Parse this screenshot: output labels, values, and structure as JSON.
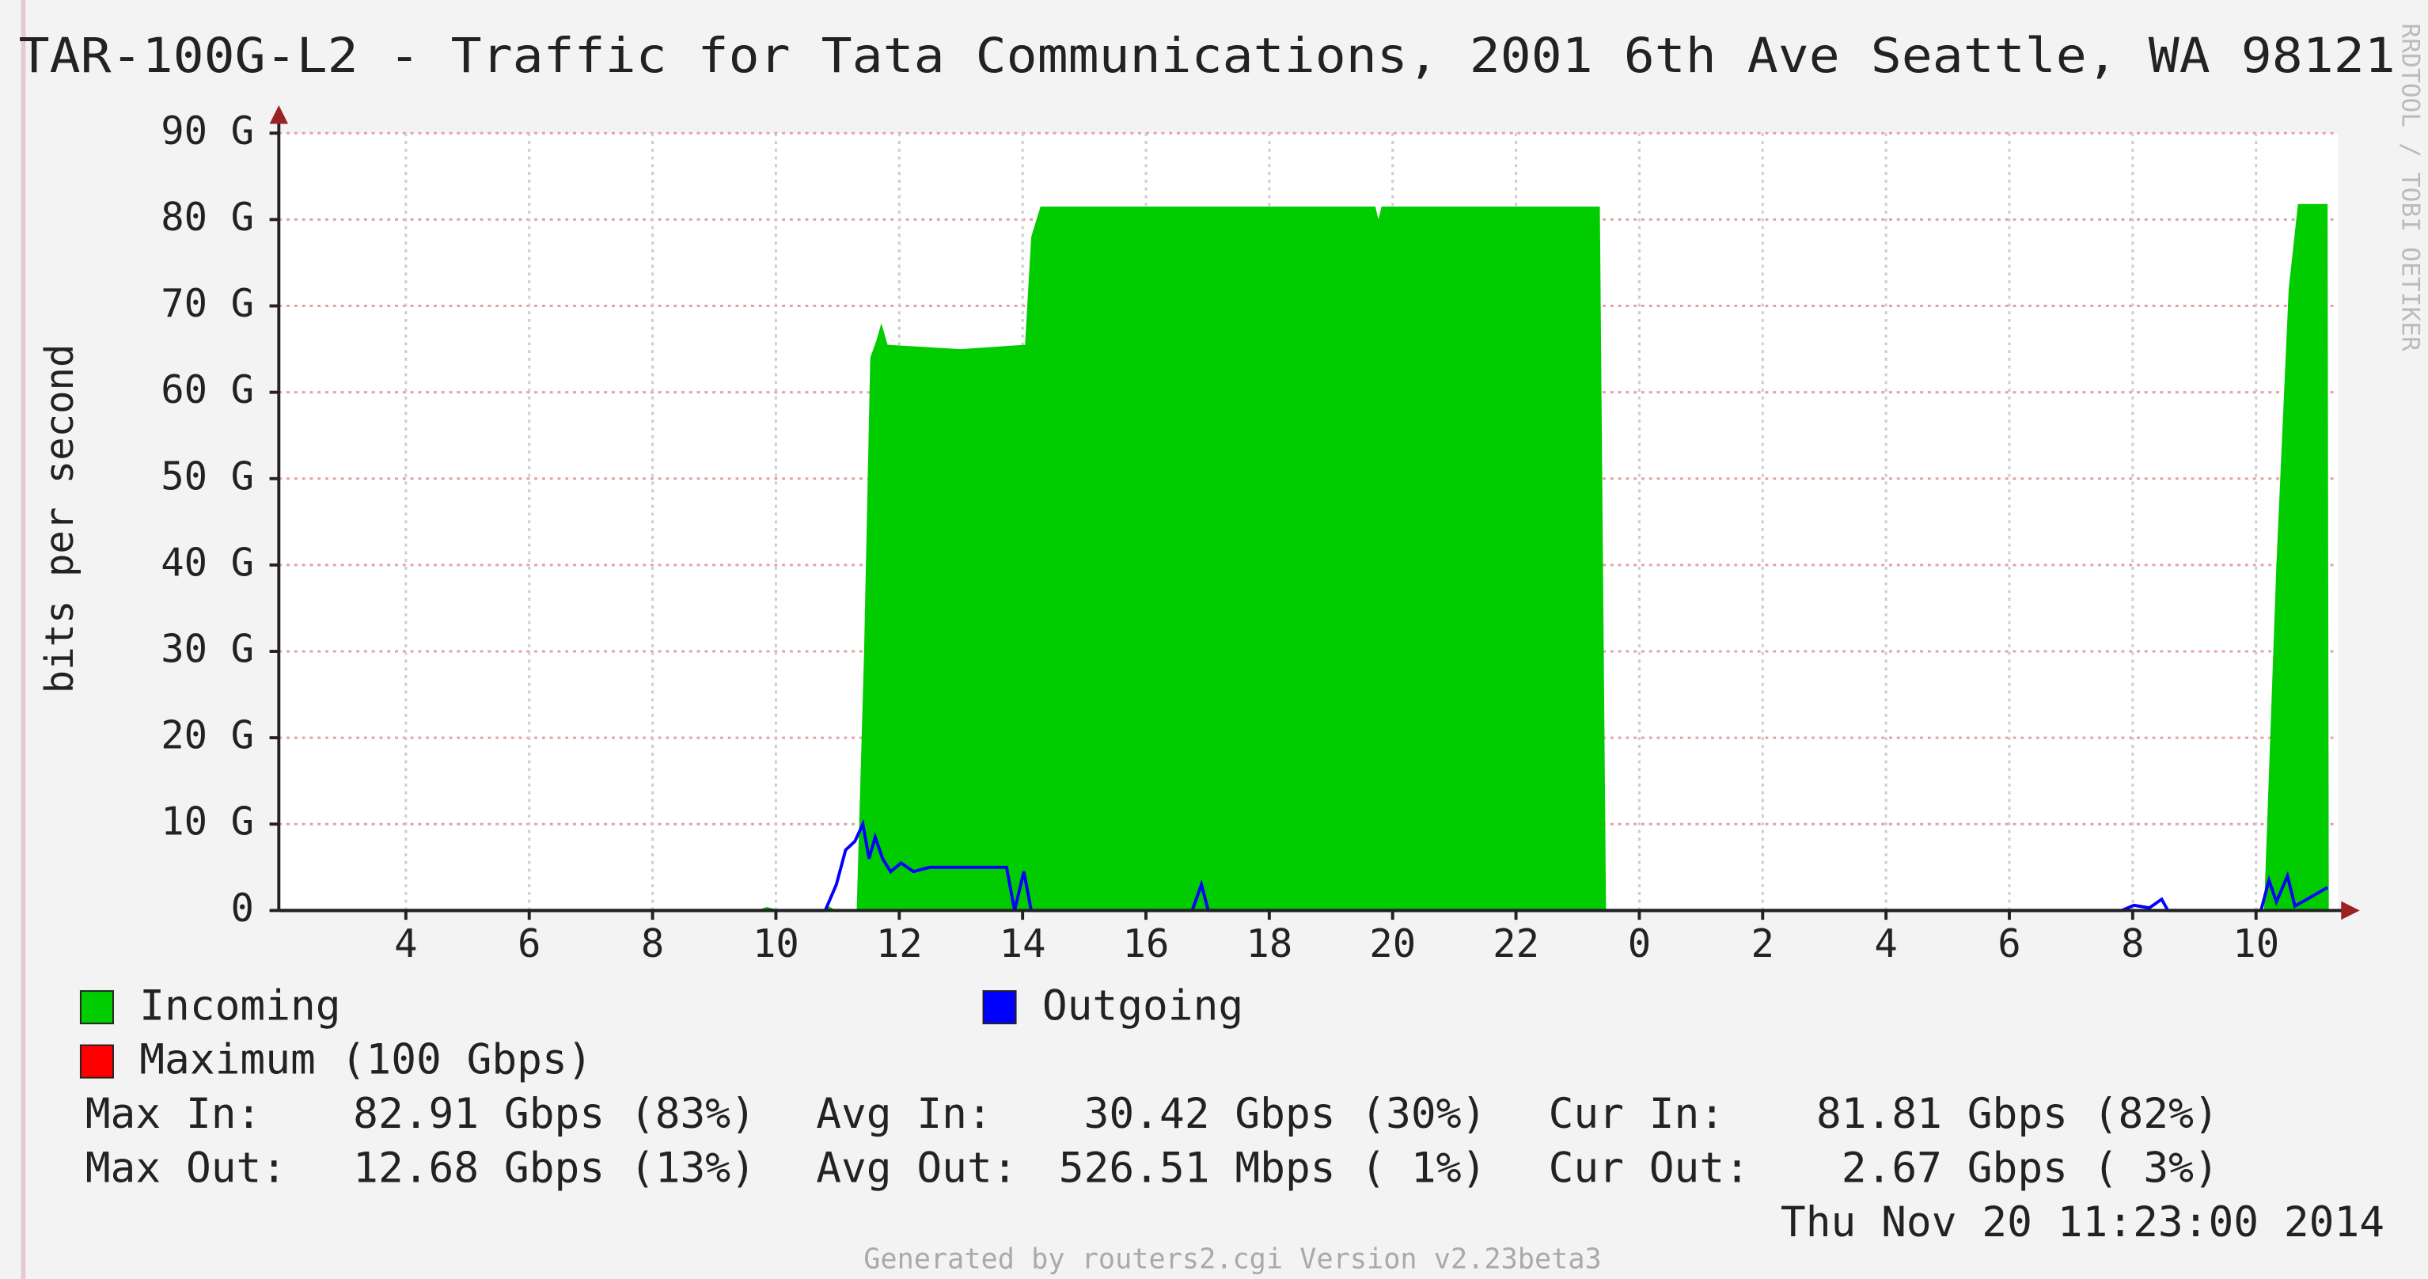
{
  "chart_data": {
    "type": "area",
    "title": "TAR-100G-L2 - Traffic for Tata Communications, 2001 6th Ave Seattle, WA 98121",
    "ylabel": "bits per second",
    "watermark": "RRDTOOL / TOBI OETIKER",
    "xlim": [
      1.94,
      35.33
    ],
    "xticks": [
      4,
      6,
      8,
      10,
      12,
      14,
      16,
      18,
      20,
      22,
      {
        "value": 24,
        "label": "0"
      },
      {
        "value": 26,
        "label": "2"
      },
      {
        "value": 28,
        "label": "4"
      },
      {
        "value": 30,
        "label": "6"
      },
      {
        "value": 32,
        "label": "8"
      },
      {
        "value": 34,
        "label": "10"
      }
    ],
    "ylim": [
      0,
      90
    ],
    "yticks": [
      0,
      {
        "value": 10,
        "label": "10 G"
      },
      {
        "value": 20,
        "label": "20 G"
      },
      {
        "value": 30,
        "label": "30 G"
      },
      {
        "value": 40,
        "label": "40 G"
      },
      {
        "value": 50,
        "label": "50 G"
      },
      {
        "value": 60,
        "label": "60 G"
      },
      {
        "value": 70,
        "label": "70 G"
      },
      {
        "value": 80,
        "label": "80 G"
      },
      {
        "value": 90,
        "label": "90 G"
      }
    ],
    "grid": true,
    "series": [
      {
        "name": "Incoming",
        "color": "#00cc00",
        "style": "area",
        "x": [
          1.94,
          9.67,
          9.85,
          10.1,
          10.73,
          10.85,
          10.98,
          11.31,
          11.43,
          11.53,
          11.63,
          11.71,
          11.81,
          12.99,
          14.04,
          14.14,
          14.29,
          17.51,
          19.72,
          19.77,
          19.82,
          23.36,
          23.46,
          34.13,
          34.33,
          34.53,
          34.68,
          35.16,
          35.18
        ],
        "values": [
          0,
          0,
          0.4,
          0,
          0,
          0.5,
          0,
          0,
          30,
          64,
          66,
          68,
          65.5,
          65,
          65.5,
          78,
          81.5,
          81.5,
          81.5,
          80,
          81.5,
          81.5,
          0,
          0,
          40,
          72,
          81.8,
          81.8,
          0
        ]
      },
      {
        "name": "Outgoing",
        "color": "#0000ff",
        "style": "line",
        "x": [
          1.94,
          10.8,
          10.98,
          11.13,
          11.28,
          11.41,
          11.51,
          11.61,
          11.73,
          11.86,
          12.03,
          12.23,
          12.49,
          13.74,
          13.87,
          14.02,
          14.14,
          16.75,
          16.9,
          17.01,
          31.82,
          32.02,
          32.27,
          32.47,
          32.57,
          34.08,
          34.21,
          34.33,
          34.51,
          34.63,
          35.16
        ],
        "values": [
          0,
          0,
          3,
          7,
          8,
          10,
          6,
          8.5,
          6,
          4.5,
          5.5,
          4.5,
          5,
          5,
          0,
          4.5,
          0,
          0,
          3,
          0,
          0,
          0.6,
          0.3,
          1.3,
          0,
          0,
          3.5,
          1,
          4,
          0.5,
          2.67
        ]
      }
    ],
    "maximum": {
      "name": "Maximum (100 Gbps)",
      "color": "#ff0000"
    },
    "stats": [
      [
        "Max In:",
        "82.91 Gbps (83%)",
        "Avg In:",
        "30.42 Gbps (30%)",
        "Cur In:",
        "81.81 Gbps (82%)"
      ],
      [
        "Max Out:",
        "12.68 Gbps (13%)",
        "Avg Out:",
        "526.51 Mbps ( 1%)",
        "Cur Out:",
        "2.67 Gbps ( 3%)"
      ]
    ],
    "timestamp": "Thu Nov 20 11:23:00 2014",
    "footer": "Generated by routers2.cgi Version v2.23beta3"
  }
}
